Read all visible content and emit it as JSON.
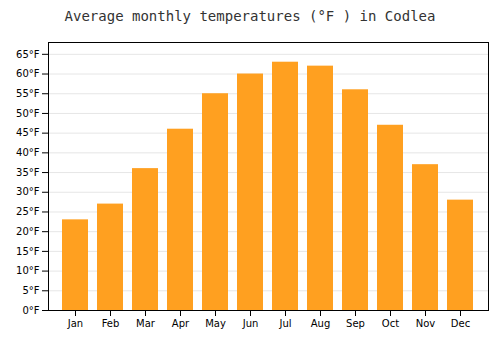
{
  "chart_data": {
    "type": "bar",
    "title": "Average monthly temperatures (°F ) in Codlea",
    "categories": [
      "Jan",
      "Feb",
      "Mar",
      "Apr",
      "May",
      "Jun",
      "Jul",
      "Aug",
      "Sep",
      "Oct",
      "Nov",
      "Dec"
    ],
    "values": [
      23,
      27,
      36,
      46,
      55,
      60,
      63,
      62,
      56,
      47,
      37,
      28
    ],
    "color": "#FFA020",
    "ylim": [
      0,
      68
    ],
    "yticks": [
      {
        "value": 0,
        "label": "0°F"
      },
      {
        "value": 5,
        "label": "5°F"
      },
      {
        "value": 10,
        "label": "10°F"
      },
      {
        "value": 15,
        "label": "15°F"
      },
      {
        "value": 20,
        "label": "20°F"
      },
      {
        "value": 25,
        "label": "25°F"
      },
      {
        "value": 30,
        "label": "30°F"
      },
      {
        "value": 35,
        "label": "35°F"
      },
      {
        "value": 40,
        "label": "40°F"
      },
      {
        "value": 45,
        "label": "45°F"
      },
      {
        "value": 50,
        "label": "50°F"
      },
      {
        "value": 55,
        "label": "55°F"
      },
      {
        "value": 60,
        "label": "60°F"
      },
      {
        "value": 65,
        "label": "65°F"
      }
    ],
    "grid": true
  }
}
